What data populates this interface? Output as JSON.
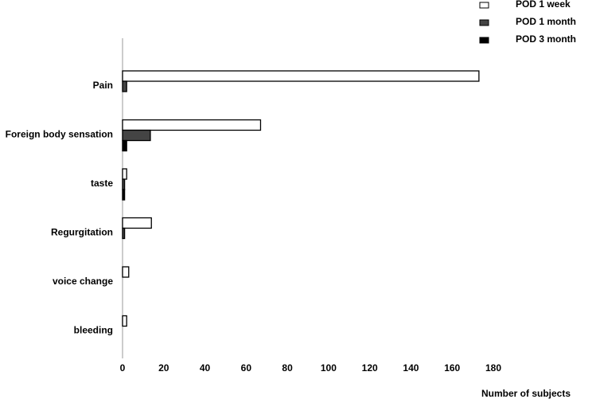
{
  "chart_data": {
    "type": "hbar",
    "categories": [
      "Pain",
      "Foreign body sensation",
      "taste",
      "Regurgitation",
      "voice change",
      "bleeding"
    ],
    "series": [
      {
        "name": "POD 1 week",
        "color": "#ffffff",
        "values": [
          173,
          67,
          2,
          14,
          3,
          2
        ]
      },
      {
        "name": "POD 1 month",
        "color": "#444444",
        "values": [
          2,
          13.5,
          1,
          1,
          0,
          0
        ]
      },
      {
        "name": "POD 3 month",
        "color": "#000000",
        "values": [
          0,
          2,
          1,
          0,
          0,
          0
        ]
      }
    ],
    "xlabel": "Number of subjects",
    "xlim": [
      0,
      180
    ],
    "xticks": [
      0,
      20,
      40,
      60,
      80,
      100,
      120,
      140,
      160,
      180
    ],
    "legend": "top-right"
  }
}
